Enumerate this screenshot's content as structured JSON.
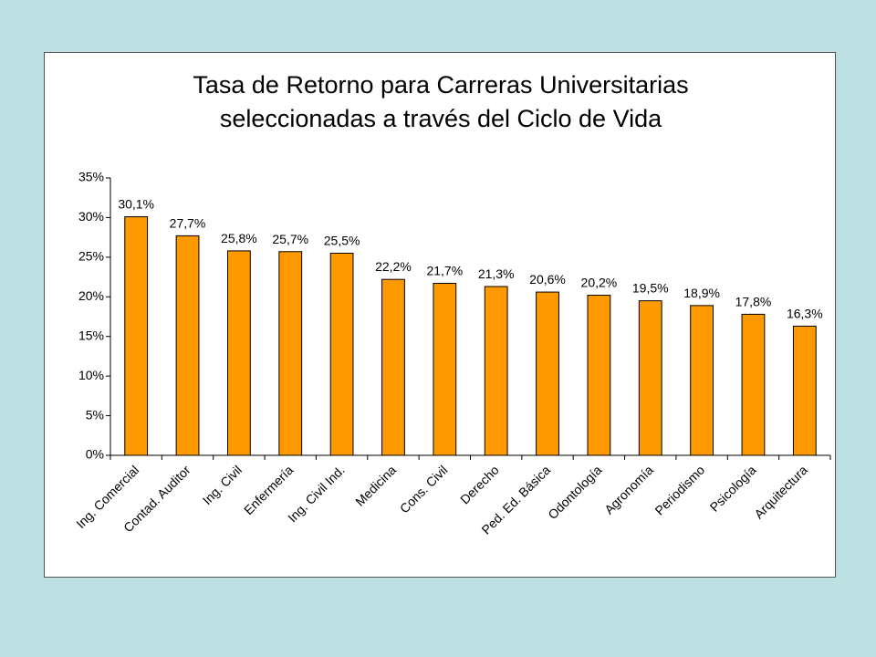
{
  "chart_data": {
    "type": "bar",
    "title": [
      "Tasa de Retorno para Carreras Universitarias",
      "seleccionadas a través del Ciclo de Vida"
    ],
    "categories": [
      "Ing. Comercial",
      "Contad. Auditor",
      "Ing. Civil",
      "Enfermería",
      "Ing. Civil Ind.",
      "Medicina",
      "Cons. Civil",
      "Derecho",
      "Ped. Ed. Básica",
      "Odontología",
      "Agronomía",
      "Periodismo",
      "Psicología",
      "Arquitectura"
    ],
    "values": [
      30.1,
      27.7,
      25.8,
      25.7,
      25.5,
      22.2,
      21.7,
      21.3,
      20.6,
      20.2,
      19.5,
      18.9,
      17.8,
      16.3
    ],
    "data_labels": [
      "30,1%",
      "27,7%",
      "25,8%",
      "25,7%",
      "25,5%",
      "22,2%",
      "21,7%",
      "21,3%",
      "20,6%",
      "20,2%",
      "19,5%",
      "18,9%",
      "17,8%",
      "16,3%"
    ],
    "yticks": [
      0,
      5,
      10,
      15,
      20,
      25,
      30,
      35
    ],
    "ytick_labels": [
      "0%",
      "5%",
      "10%",
      "15%",
      "20%",
      "25%",
      "30%",
      "35%"
    ],
    "ylim": [
      0,
      35
    ],
    "bar_color": "#ff9900",
    "grid": false,
    "legend": "none"
  }
}
